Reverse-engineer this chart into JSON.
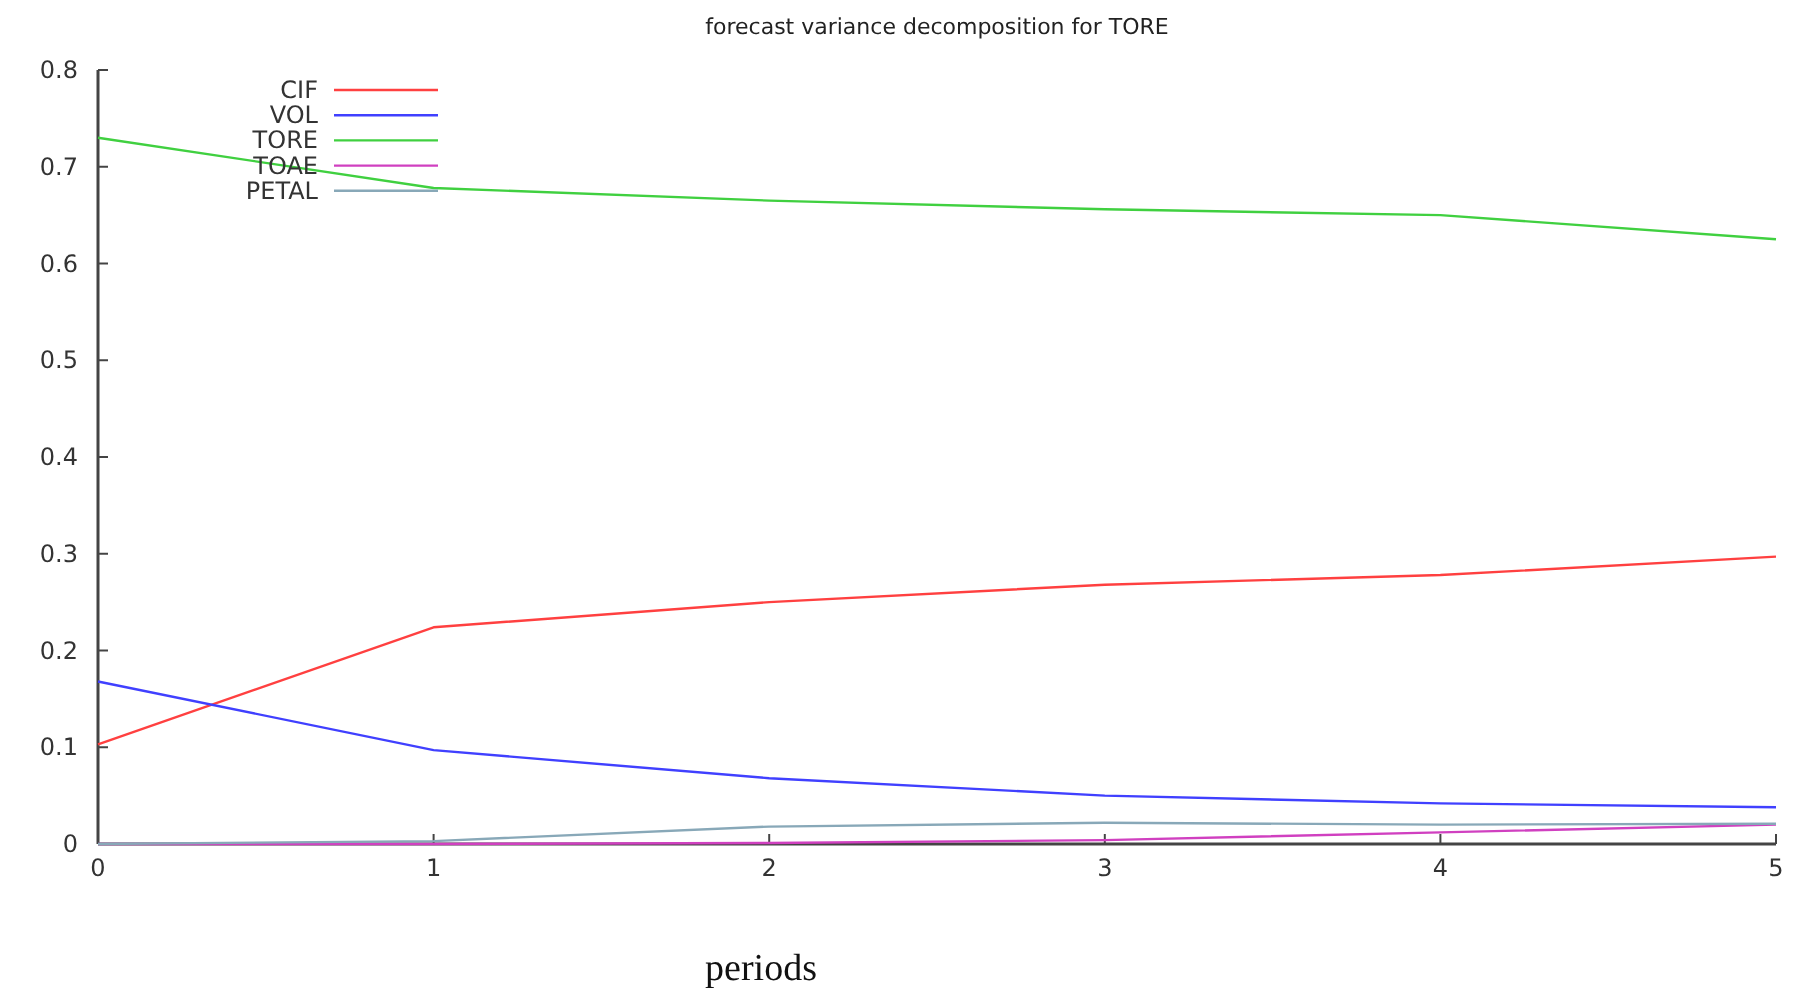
{
  "chart_data": {
    "type": "line",
    "title": "forecast variance decomposition for TORE",
    "xlabel": "periods",
    "x": [
      0,
      1,
      2,
      3,
      4,
      5
    ],
    "xlim": [
      0,
      5
    ],
    "xticks": [
      0,
      1,
      2,
      3,
      4,
      5
    ],
    "ylim": [
      0,
      0.8
    ],
    "yticks": [
      0,
      0.1,
      0.2,
      0.3,
      0.4,
      0.5,
      0.6,
      0.7,
      0.8
    ],
    "legend": "top left",
    "grid": false,
    "marker": "none",
    "line_style": "solid",
    "series": [
      {
        "name": "CIF",
        "color": "#ff4040",
        "values": [
          0.103,
          0.224,
          0.25,
          0.268,
          0.278,
          0.297
        ]
      },
      {
        "name": "VOL",
        "color": "#4040ff",
        "values": [
          0.168,
          0.097,
          0.068,
          0.05,
          0.042,
          0.038
        ]
      },
      {
        "name": "TORE",
        "color": "#40d040",
        "values": [
          0.73,
          0.678,
          0.665,
          0.656,
          0.65,
          0.625
        ]
      },
      {
        "name": "TOAE",
        "color": "#d040c0",
        "values": [
          0,
          0,
          0.001,
          0.004,
          0.012,
          0.02
        ]
      },
      {
        "name": "PETAL",
        "color": "#88a8b8",
        "values": [
          0,
          0.003,
          0.018,
          0.022,
          0.02,
          0.021
        ]
      }
    ]
  }
}
